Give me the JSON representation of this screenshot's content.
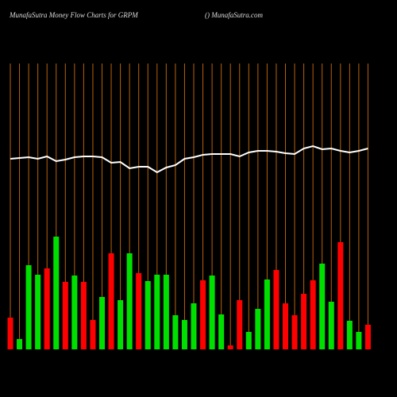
{
  "chart_data": {
    "type": "bar",
    "title": "MunafaSutra  Money Flow  Charts for GRPM",
    "subtitle": "() MunafaSutra.com",
    "ylim": [
      0,
      360
    ],
    "grid_color": "#b8620a",
    "categories": [
      null,
      null,
      null,
      null,
      null,
      null,
      null,
      null,
      null,
      null,
      null,
      null,
      null,
      null,
      null,
      null,
      null,
      null,
      null,
      null,
      null,
      null,
      null,
      null,
      null,
      null,
      null,
      null,
      null,
      null,
      null,
      null,
      null,
      null,
      null,
      null,
      null,
      null,
      null,
      null
    ],
    "series": [
      {
        "color": "#ff0000",
        "up_color": "#00e000",
        "values": [
          40,
          13,
          106,
          94,
          102,
          142,
          85,
          93,
          85,
          37,
          66,
          121,
          62,
          121,
          96,
          86,
          94,
          94,
          43,
          37,
          58,
          87,
          93,
          44,
          5,
          62,
          22,
          51,
          88,
          100,
          58,
          43,
          70,
          87,
          108,
          60,
          135,
          36,
          22,
          31
        ],
        "colors": [
          "#ff0000",
          "#00e000",
          "#00e000",
          "#00e000",
          "#ff0000",
          "#00e000",
          "#ff0000",
          "#00e000",
          "#ff0000",
          "#ff0000",
          "#00e000",
          "#ff0000",
          "#00e000",
          "#00e000",
          "#ff0000",
          "#00e000",
          "#00e000",
          "#00e000",
          "#00e000",
          "#00e000",
          "#00e000",
          "#ff0000",
          "#00e000",
          "#00e000",
          "#ff0000",
          "#ff0000",
          "#00e000",
          "#00e000",
          "#00e000",
          "#ff0000",
          "#ff0000",
          "#ff0000",
          "#ff0000",
          "#ff0000",
          "#00e000",
          "#00e000",
          "#ff0000",
          "#00e000",
          "#00e000",
          "#ff0000"
        ]
      },
      {
        "type": "line",
        "color": "#ffffff",
        "values": [
          240,
          241,
          242,
          240,
          243,
          237,
          239,
          242,
          243,
          243,
          242,
          235,
          236,
          228,
          230,
          230,
          223,
          229,
          232,
          240,
          242,
          245,
          246,
          246,
          246,
          243,
          248,
          250,
          250,
          249,
          247,
          246,
          253,
          256,
          252,
          253,
          250,
          248,
          250,
          253
        ]
      }
    ]
  }
}
